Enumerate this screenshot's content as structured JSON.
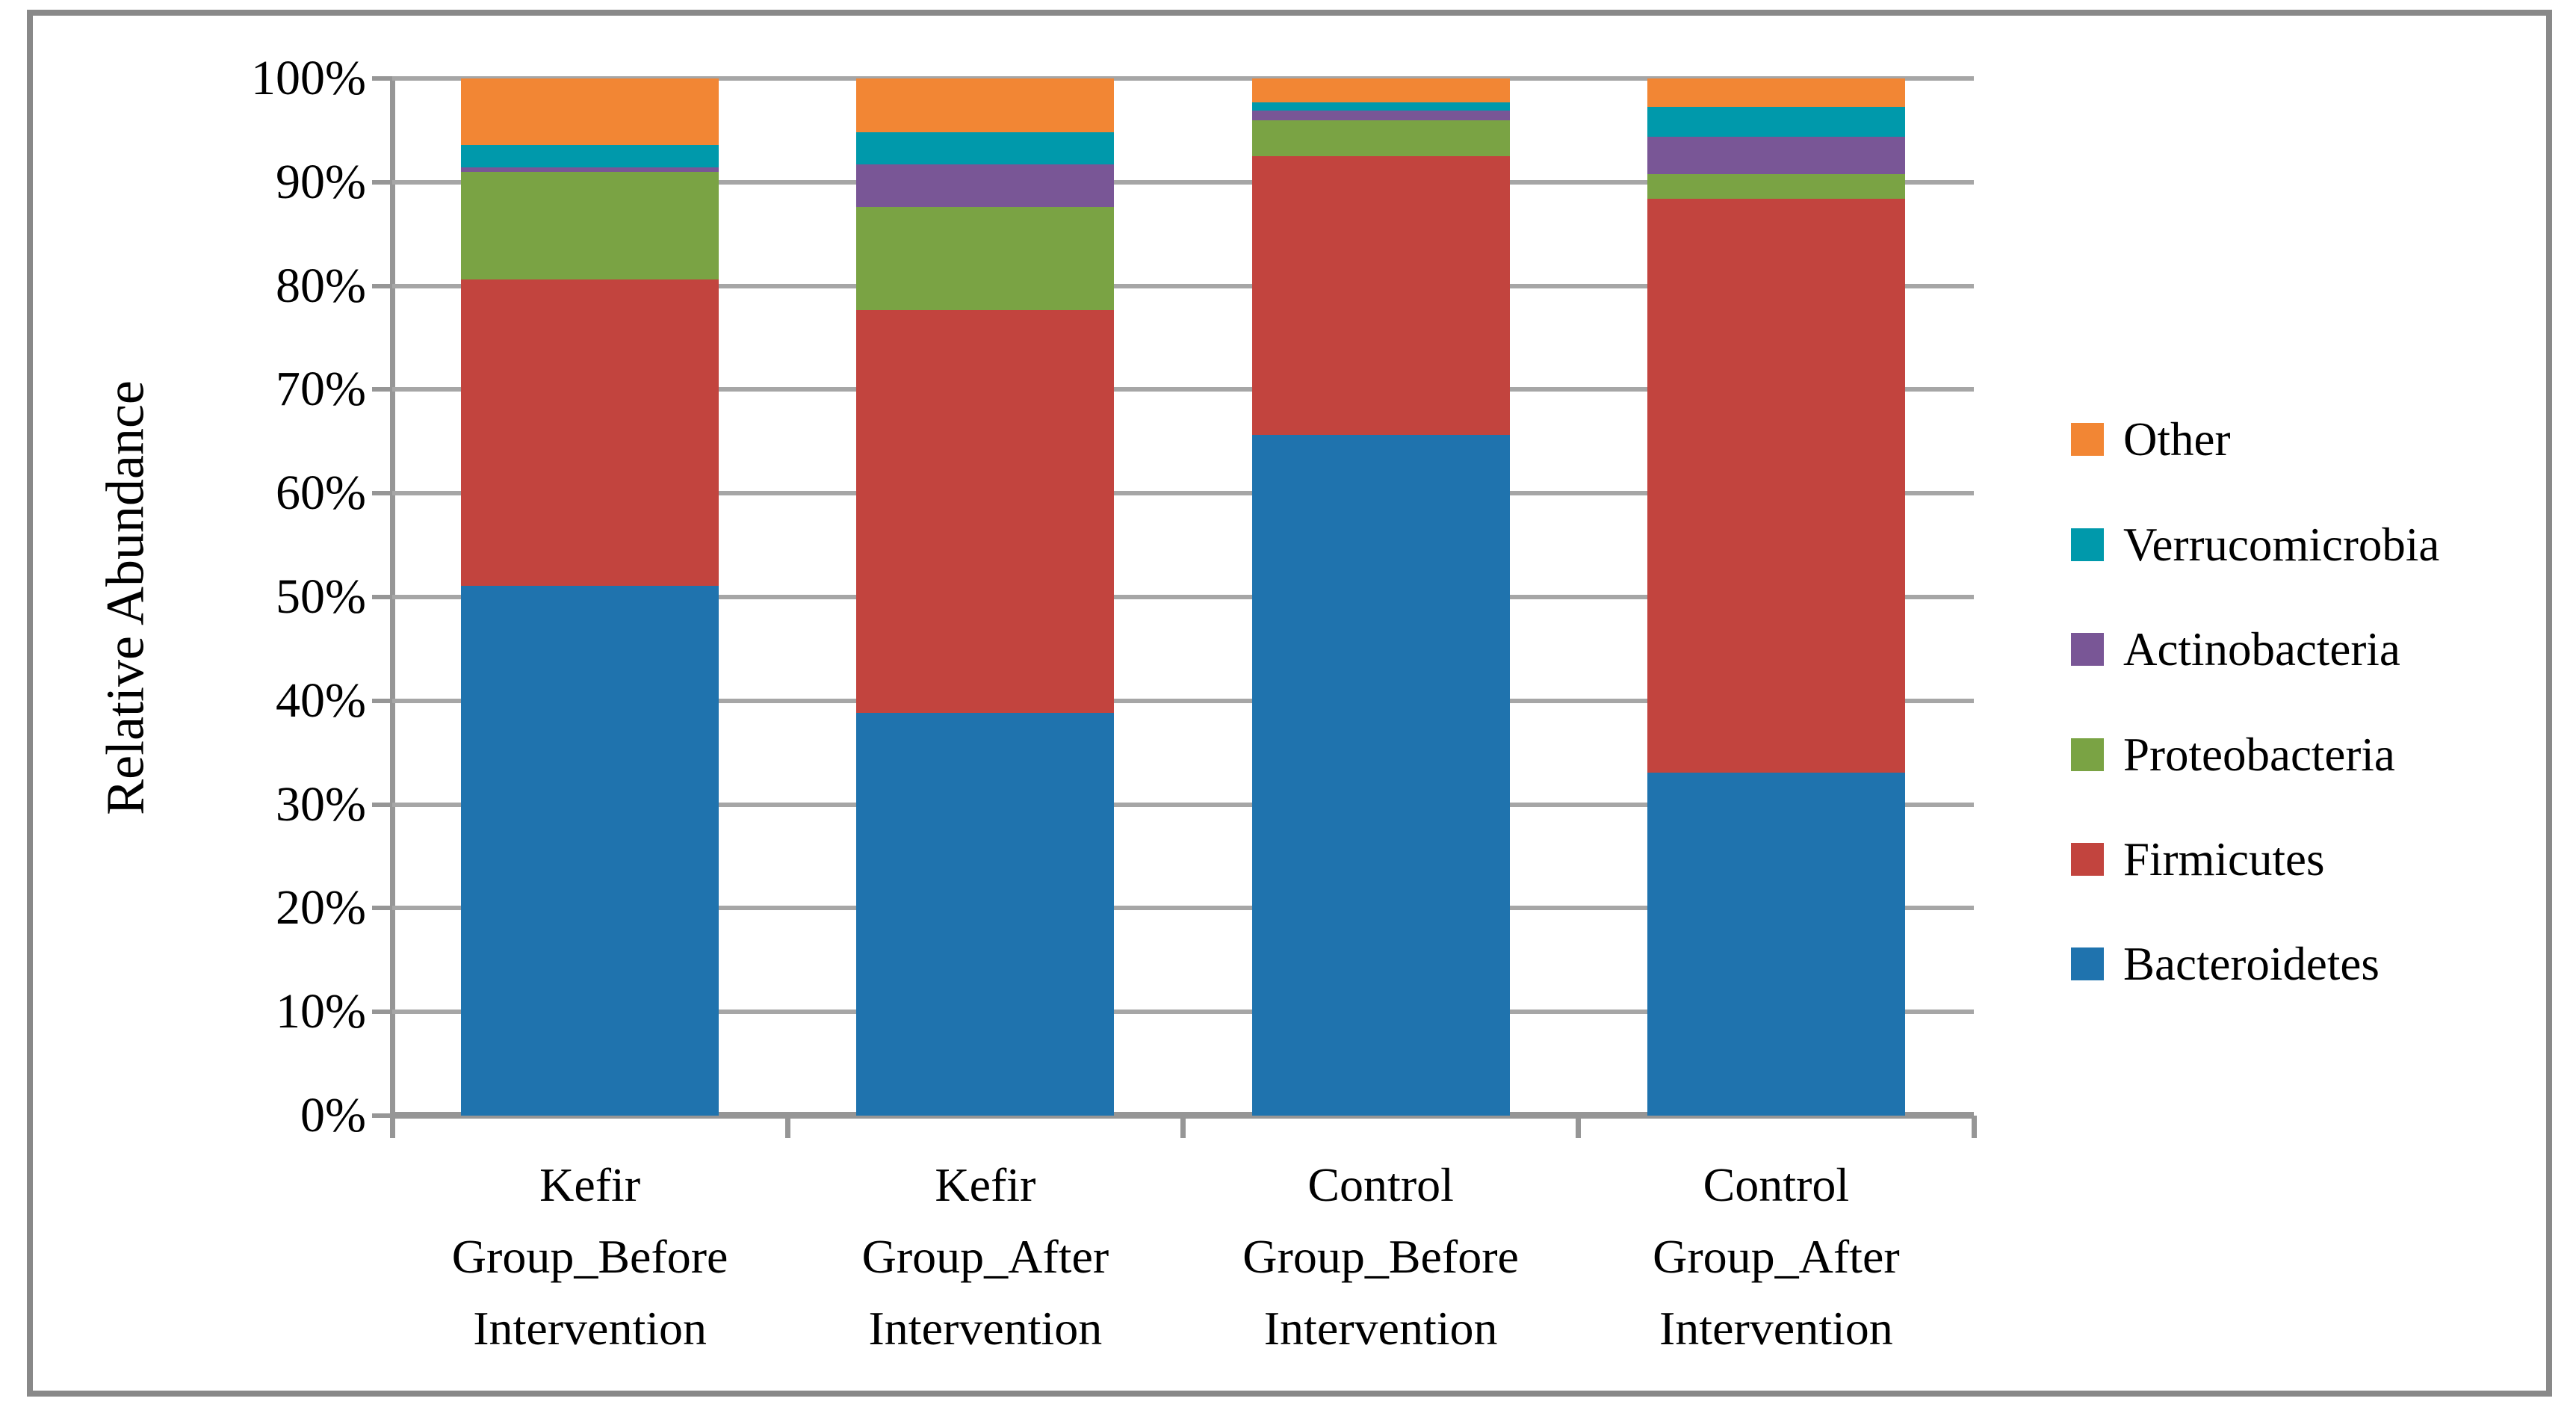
{
  "y_axis": {
    "title": "Relative Abundance",
    "tick_labels": [
      "100%",
      "90%",
      "80%",
      "70%",
      "60%",
      "50%",
      "40%",
      "30%",
      "20%",
      "10%",
      "0%"
    ]
  },
  "x_axis": {
    "category_lines": [
      [
        "Kefir",
        "Group_Before",
        "Intervention"
      ],
      [
        "Kefir",
        "Group_After",
        "Intervention"
      ],
      [
        "Control",
        "Group_Before",
        "Intervention"
      ],
      [
        "Control",
        "Group_After",
        "Intervention"
      ]
    ]
  },
  "legend": {
    "items": [
      {
        "label": "Other",
        "color": "#F28634"
      },
      {
        "label": "Verrucomicrobia",
        "color": "#0099AB"
      },
      {
        "label": "Actinobacteria",
        "color": "#795696"
      },
      {
        "label": "Proteobacteria",
        "color": "#7AA344"
      },
      {
        "label": "Firmicutes",
        "color": "#C2443E"
      },
      {
        "label": "Bacteroidetes",
        "color": "#1F73AE"
      }
    ]
  },
  "chart_data": {
    "type": "bar",
    "stacked": true,
    "title": "",
    "xlabel": "",
    "ylabel": "Relative Abundance",
    "ylim": [
      0,
      100
    ],
    "ytick_step": 10,
    "ytick_format": "percent",
    "grid": true,
    "grid_color": "#A6A6A6",
    "axis_color": "#969696",
    "legend_position": "right",
    "categories": [
      "Kefir Group_Before Intervention",
      "Kefir Group_After Intervention",
      "Control Group_Before Intervention",
      "Control Group_After Intervention"
    ],
    "series": [
      {
        "name": "Bacteroidetes",
        "color": "#1F73AE",
        "values": [
          51.1,
          38.8,
          65.6,
          33.1
        ]
      },
      {
        "name": "Firmicutes",
        "color": "#C2443E",
        "values": [
          29.5,
          38.9,
          26.9,
          55.3
        ]
      },
      {
        "name": "Proteobacteria",
        "color": "#7AA344",
        "values": [
          10.4,
          9.9,
          3.5,
          2.4
        ]
      },
      {
        "name": "Actinobacteria",
        "color": "#795696",
        "values": [
          0.4,
          4.1,
          0.9,
          3.6
        ]
      },
      {
        "name": "Verrucomicrobia",
        "color": "#0099AB",
        "values": [
          2.2,
          3.1,
          0.8,
          2.9
        ]
      },
      {
        "name": "Other",
        "color": "#F28634",
        "values": [
          6.4,
          5.2,
          2.3,
          2.7
        ]
      }
    ]
  }
}
